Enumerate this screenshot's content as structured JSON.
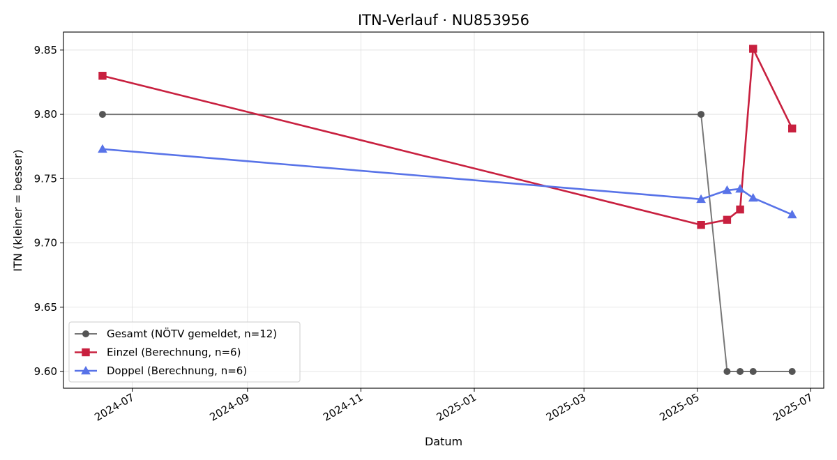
{
  "chart_data": {
    "type": "line",
    "title": "ITN-Verlauf · NU853956",
    "xlabel": "Datum",
    "ylabel": "ITN  (kleiner = besser)",
    "ylim": [
      9.587,
      9.864
    ],
    "xlim": [
      "2024-05-25",
      "2025-07-08"
    ],
    "grid": true,
    "legend_position": "lower-left",
    "x_ticks": [
      "2024-07",
      "2024-09",
      "2024-11",
      "2025-01",
      "2025-03",
      "2025-05",
      "2025-07"
    ],
    "y_ticks": [
      "9.60",
      "9.65",
      "9.70",
      "9.75",
      "9.80",
      "9.85"
    ],
    "series": [
      {
        "name": "Gesamt (NÖTV gemeldet, n=12)",
        "color": "#555555",
        "marker": "circle",
        "x": [
          "2024-06-15",
          "2025-05-03",
          "2025-05-17",
          "2025-05-24",
          "2025-05-31",
          "2025-06-21"
        ],
        "y": [
          9.8,
          9.8,
          9.6,
          9.6,
          9.6,
          9.6
        ]
      },
      {
        "name": "Einzel (Berechnung, n=6)",
        "color": "#c8203f",
        "marker": "square",
        "x": [
          "2024-06-15",
          "2025-05-03",
          "2025-05-17",
          "2025-05-24",
          "2025-05-31",
          "2025-06-21"
        ],
        "y": [
          9.83,
          9.714,
          9.718,
          9.726,
          9.851,
          9.789
        ]
      },
      {
        "name": "Doppel (Berechnung, n=6)",
        "color": "#5873e8",
        "marker": "triangle",
        "x": [
          "2024-06-15",
          "2025-05-03",
          "2025-05-17",
          "2025-05-24",
          "2025-05-31",
          "2025-06-21"
        ],
        "y": [
          9.773,
          9.734,
          9.741,
          9.742,
          9.735,
          9.722
        ]
      }
    ]
  }
}
